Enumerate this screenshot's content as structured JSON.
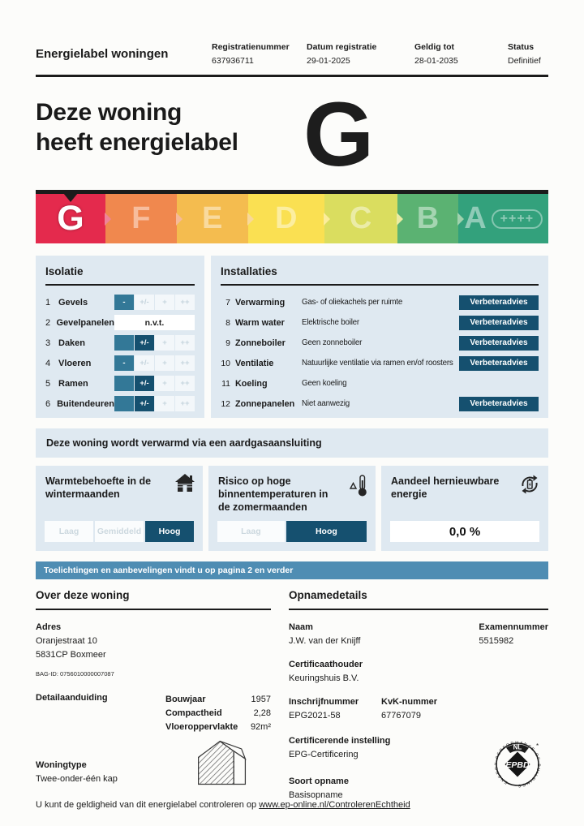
{
  "header": {
    "title": "Energielabel woningen",
    "meta": [
      {
        "label": "Registratienummer",
        "value": "637936711"
      },
      {
        "label": "Datum registratie",
        "value": "29-01-2025"
      },
      {
        "label": "Geldig tot",
        "value": "28-01-2035"
      },
      {
        "label": "Status",
        "value": "Definitief"
      }
    ]
  },
  "hero": {
    "line1": "Deze woning",
    "line2": "heeft energielabel",
    "label": "G"
  },
  "scale": {
    "current": "G",
    "segments": [
      {
        "letter": "G",
        "color": "#E42A4D",
        "active": true
      },
      {
        "letter": "F",
        "color": "#F0884E"
      },
      {
        "letter": "E",
        "color": "#F4BC4F"
      },
      {
        "letter": "D",
        "color": "#FAE052"
      },
      {
        "letter": "C",
        "color": "#DADD5F"
      },
      {
        "letter": "B",
        "color": "#5BB272"
      },
      {
        "letter": "A",
        "color": "#33A17C",
        "plus": "++++"
      }
    ]
  },
  "isolatie": {
    "title": "Isolatie",
    "scale_labels": [
      "-",
      "+/-",
      "+",
      "++"
    ],
    "na_label": "n.v.t.",
    "rows": [
      {
        "num": "1",
        "label": "Gevels",
        "value": "-"
      },
      {
        "num": "2",
        "label": "Gevelpanelen",
        "value": "n.v.t."
      },
      {
        "num": "3",
        "label": "Daken",
        "value": "+/-"
      },
      {
        "num": "4",
        "label": "Vloeren",
        "value": "-"
      },
      {
        "num": "5",
        "label": "Ramen",
        "value": "+/-"
      },
      {
        "num": "6",
        "label": "Buitendeuren",
        "value": "+/-"
      }
    ]
  },
  "installaties": {
    "title": "Installaties",
    "advice_label": "Verbeteradvies",
    "rows": [
      {
        "num": "7",
        "label": "Verwarming",
        "value": "Gas- of oliekachels per ruimte",
        "advice": true
      },
      {
        "num": "8",
        "label": "Warm water",
        "value": "Elektrische boiler",
        "advice": true
      },
      {
        "num": "9",
        "label": "Zonneboiler",
        "value": "Geen zonneboiler",
        "advice": true
      },
      {
        "num": "10",
        "label": "Ventilatie",
        "value": "Natuurlijke ventilatie via ramen en/of roosters",
        "advice": true
      },
      {
        "num": "11",
        "label": "Koeling",
        "value": "Geen koeling",
        "advice": false
      },
      {
        "num": "12",
        "label": "Zonnepanelen",
        "value": "Niet aanwezig",
        "advice": true
      }
    ]
  },
  "banner": "Deze woning wordt verwarmd via een aardgasaansluiting",
  "cards": [
    {
      "title": "Warmtebehoefte in de wintermaanden",
      "icon": "house-icon",
      "options": [
        "Laag",
        "Gemiddeld",
        "Hoog"
      ],
      "selected": "Hoog"
    },
    {
      "title": "Risico op hoge binnentemperaturen in de zomermaanden",
      "icon": "thermometer-warning-icon",
      "options": [
        "Laag",
        "Hoog"
      ],
      "selected": "Hoog"
    },
    {
      "title": "Aandeel hernieuwbare energie",
      "icon": "renewable-energy-icon",
      "value": "0,0 %"
    }
  ],
  "strip": "Toelichtingen en aanbevelingen vindt u op pagina 2 en verder",
  "woning": {
    "title": "Over deze woning",
    "adres_label": "Adres",
    "adres_line1": "Oranjestraat 10",
    "adres_line2": "5831CP Boxmeer",
    "bag_id": "BAG-ID: 0756010000007087",
    "detail_label": "Detailaanduiding",
    "facts": [
      {
        "label": "Bouwjaar",
        "value": "1957"
      },
      {
        "label": "Compactheid",
        "value": "2,28"
      },
      {
        "label": "Vloeroppervlakte",
        "value": "92m²"
      }
    ],
    "woningtype_label": "Woningtype",
    "woningtype": "Twee-onder-één kap"
  },
  "opname": {
    "title": "Opnamedetails",
    "naam_label": "Naam",
    "naam": "J.W. van der Knijff",
    "examen_label": "Examennummer",
    "examen": "5515982",
    "cert_label": "Certificaathouder",
    "cert": "Keuringshuis B.V.",
    "inschrijf_label": "Inschrijfnummer",
    "inschrijf": "EPG2021-58",
    "kvk_label": "KvK-nummer",
    "kvk": "67767079",
    "instelling_label": "Certificerende instelling",
    "instelling": "EPG-Certificering",
    "opname_label": "Soort opname",
    "opname": "Basisopname"
  },
  "stamp": {
    "top": "NL",
    "center": "EPBD",
    "ring": "ENERGY PERFORMANCE OF BUILDINGS"
  },
  "footer": {
    "text": "U kunt de geldigheid van dit energielabel controleren op ",
    "link": "www.ep-online.nl/ControlerenEchtheid"
  }
}
